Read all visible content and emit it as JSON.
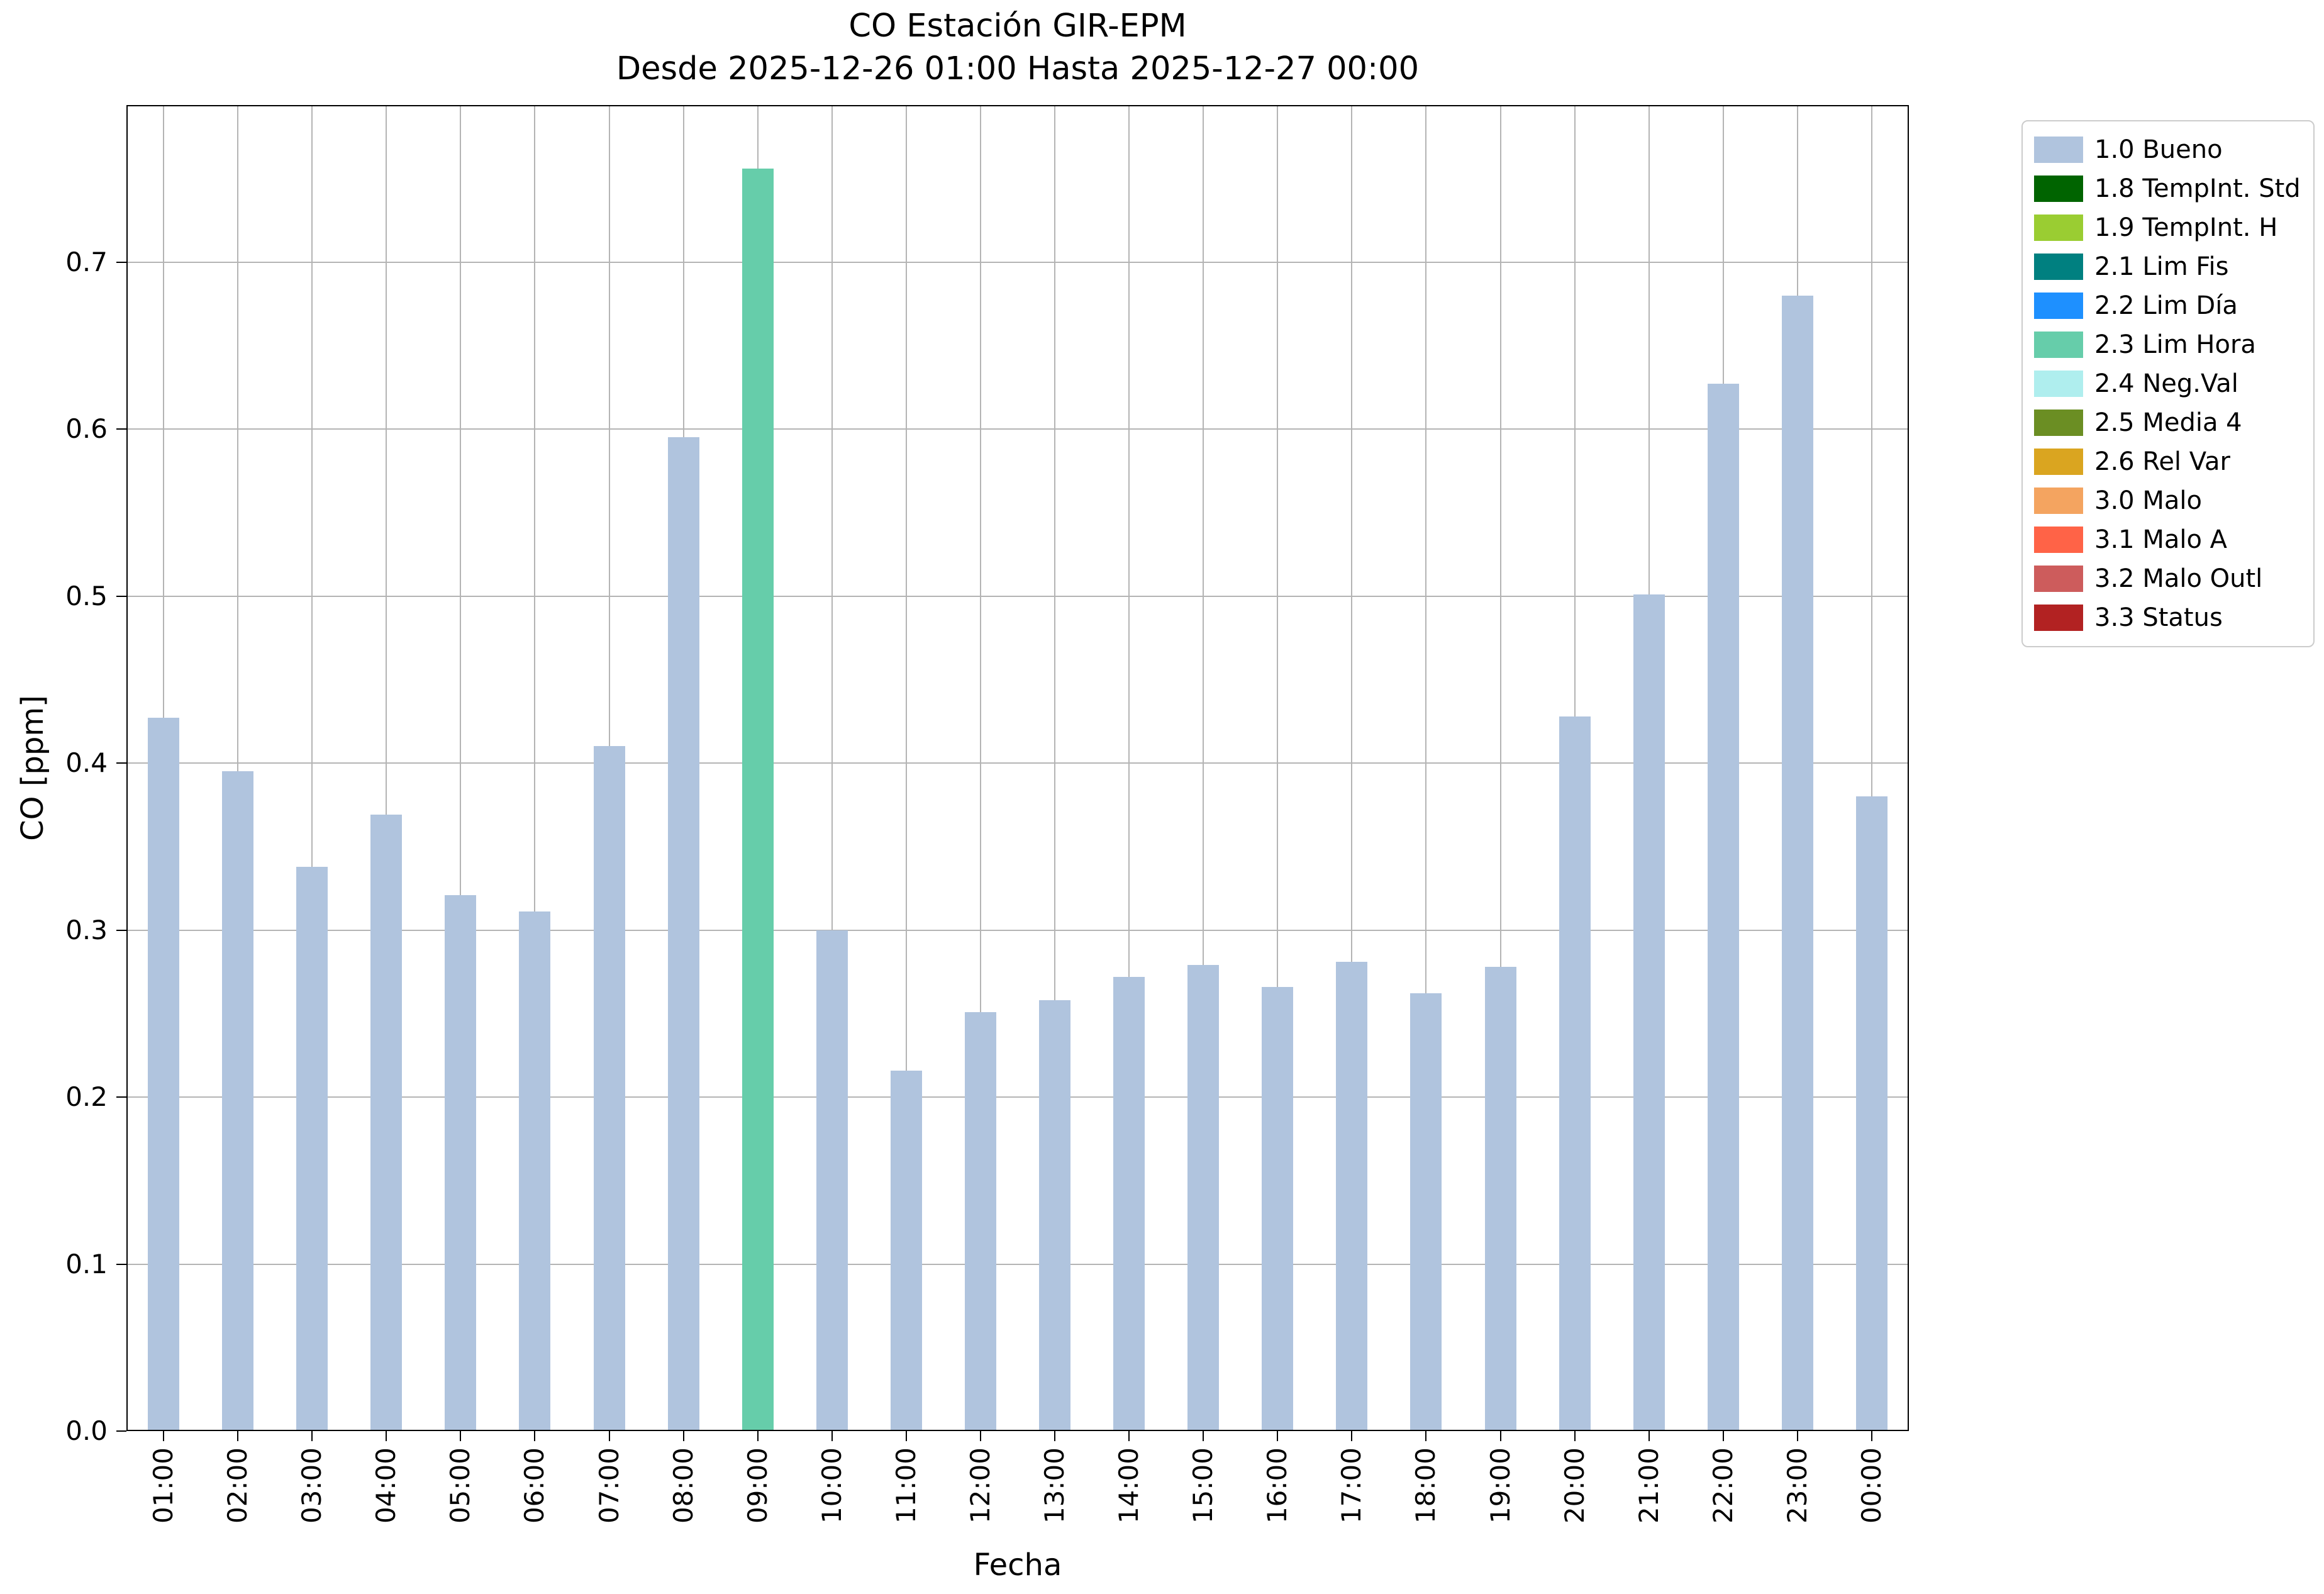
{
  "figure": {
    "background": "#ffffff"
  },
  "chart_data": {
    "type": "bar",
    "title": "CO Estación GIR-EPM",
    "subtitle": "Desde 2025-12-26 01:00 Hasta 2025-12-27 00:00",
    "xlabel": "Fecha",
    "ylabel": "CO [ppm]",
    "ylim": [
      0,
      0.794
    ],
    "yticks": [
      0.0,
      0.1,
      0.2,
      0.3,
      0.4,
      0.5,
      0.6,
      0.7
    ],
    "ytick_labels": [
      "0.0",
      "0.1",
      "0.2",
      "0.3",
      "0.4",
      "0.5",
      "0.6",
      "0.7"
    ],
    "grid": true,
    "legend_position": "outside upper right",
    "categories": [
      "01:00",
      "02:00",
      "03:00",
      "04:00",
      "05:00",
      "06:00",
      "07:00",
      "08:00",
      "09:00",
      "10:00",
      "11:00",
      "12:00",
      "13:00",
      "14:00",
      "15:00",
      "16:00",
      "17:00",
      "18:00",
      "19:00",
      "20:00",
      "21:00",
      "22:00",
      "23:00",
      "00:00"
    ],
    "values": [
      0.427,
      0.395,
      0.338,
      0.369,
      0.321,
      0.311,
      0.41,
      0.595,
      0.756,
      0.3,
      0.216,
      0.251,
      0.258,
      0.272,
      0.279,
      0.266,
      0.281,
      0.262,
      0.278,
      0.428,
      0.501,
      0.627,
      0.68,
      0.38
    ],
    "point_status": [
      "1.0 Bueno",
      "1.0 Bueno",
      "1.0 Bueno",
      "1.0 Bueno",
      "1.0 Bueno",
      "1.0 Bueno",
      "1.0 Bueno",
      "1.0 Bueno",
      "2.3 Lim Hora",
      "1.0 Bueno",
      "1.0 Bueno",
      "1.0 Bueno",
      "1.0 Bueno",
      "1.0 Bueno",
      "1.0 Bueno",
      "1.0 Bueno",
      "1.0 Bueno",
      "1.0 Bueno",
      "1.0 Bueno",
      "1.0 Bueno",
      "1.0 Bueno",
      "1.0 Bueno",
      "1.0 Bueno",
      "1.0 Bueno"
    ],
    "legend": [
      {
        "label": "1.0 Bueno",
        "color": "#b0c4de"
      },
      {
        "label": "1.8 TempInt. Std",
        "color": "#006400"
      },
      {
        "label": "1.9 TempInt. H",
        "color": "#9acd32"
      },
      {
        "label": "2.1 Lim Fis",
        "color": "#008080"
      },
      {
        "label": "2.2 Lim Día",
        "color": "#1e90ff"
      },
      {
        "label": "2.3 Lim Hora",
        "color": "#66cdaa"
      },
      {
        "label": "2.4 Neg.Val",
        "color": "#afeeee"
      },
      {
        "label": "2.5 Media 4",
        "color": "#6b8e23"
      },
      {
        "label": "2.6 Rel Var",
        "color": "#daa520"
      },
      {
        "label": "3.0 Malo",
        "color": "#f4a460"
      },
      {
        "label": "3.1 Malo A",
        "color": "#ff6347"
      },
      {
        "label": "3.2 Malo Outl",
        "color": "#cd5c5c"
      },
      {
        "label": "3.3 Status",
        "color": "#b22222"
      }
    ],
    "colors": {
      "grid": "#b4b4b4",
      "axis": "#000000",
      "default_bar": "#b0c4de"
    }
  }
}
